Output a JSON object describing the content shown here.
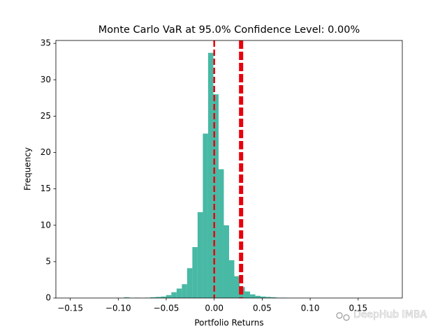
{
  "chart_data": {
    "type": "histogram",
    "title": "Monte Carlo VaR at 95.0% Confidence Level: 0.00%",
    "xlabel": "Portfolio Returns",
    "ylabel": "Frequency",
    "watermark": "DeepHub IMBA",
    "color": "#48b9a5",
    "bins": [
      -0.1486,
      -0.14313,
      -0.13766,
      -0.13219,
      -0.12672,
      -0.12125,
      -0.11578,
      -0.11031,
      -0.10484,
      -0.09937,
      -0.0939,
      -0.08843,
      -0.08296,
      -0.07749,
      -0.07202,
      -0.06655,
      -0.06108,
      -0.05561,
      -0.05014,
      -0.04467,
      -0.0392,
      -0.03373,
      -0.02826,
      -0.02279,
      -0.01732,
      -0.01185,
      -0.00638,
      -0.00091,
      0.00456,
      0.01003,
      0.0155,
      0.02097,
      0.02644,
      0.03191,
      0.03738,
      0.04285,
      0.04832,
      0.05379,
      0.05926,
      0.06473,
      0.0702,
      0.07567,
      0.08114,
      0.08661,
      0.09208,
      0.09755,
      0.10302,
      0.10849,
      0.11396,
      0.11943,
      0.1249,
      0.13037,
      0.13584,
      0.14131,
      0.14678,
      0.15225,
      0.15772,
      0.16319,
      0.16866,
      0.17413,
      0.1796
    ],
    "values": [
      0,
      0,
      0,
      0,
      0,
      0,
      0,
      0,
      0,
      0,
      0.1,
      0,
      0.05,
      0,
      0.05,
      0.1,
      0.15,
      0.2,
      0.4,
      0.8,
      1.3,
      1.9,
      4.1,
      7.0,
      11.8,
      22.6,
      33.7,
      28.0,
      17.7,
      10.0,
      5.2,
      3.0,
      1.5,
      0.9,
      0.5,
      0.3,
      0.2,
      0.15,
      0.1,
      0.05,
      0.05,
      0,
      0,
      0,
      0,
      0,
      0,
      0,
      0,
      0,
      0,
      0,
      0,
      0,
      0,
      0,
      0,
      0,
      0,
      0
    ],
    "vlines": [
      0,
      0.028
    ],
    "vline_color": "#e8000b",
    "xlim": [
      -0.165,
      0.196
    ],
    "ylim": [
      0,
      35.4
    ],
    "xticks": [
      {
        "value": -0.15,
        "label": "−0.15"
      },
      {
        "value": -0.1,
        "label": "−0.10"
      },
      {
        "value": -0.05,
        "label": "−0.05"
      },
      {
        "value": 0,
        "label": "0.00"
      },
      {
        "value": 0.05,
        "label": "0.05"
      },
      {
        "value": 0.1,
        "label": "0.10"
      },
      {
        "value": 0.15,
        "label": "0.15"
      }
    ],
    "yticks": [
      0,
      5,
      10,
      15,
      20,
      25,
      30,
      35
    ]
  }
}
